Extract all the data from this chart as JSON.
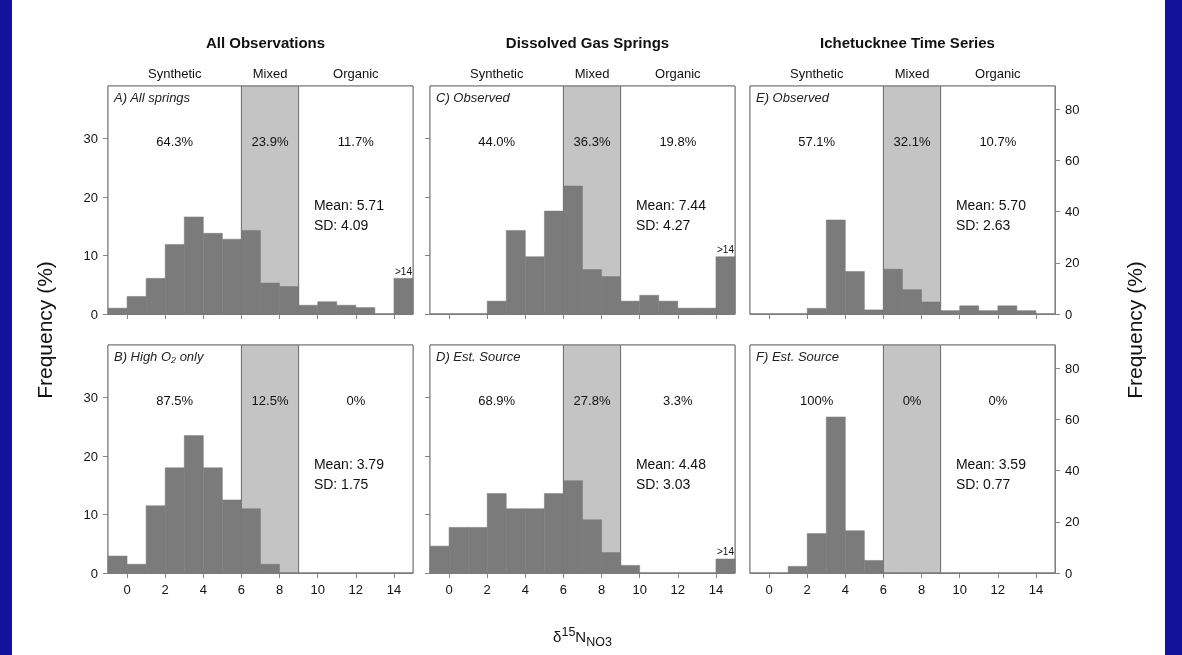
{
  "chart_data": [
    {
      "type": "histogram",
      "title": "All Observations",
      "ylabel": "Frequency (%)",
      "xlim": [
        -1,
        15
      ],
      "xticks": [
        0,
        2,
        4,
        6,
        8,
        10,
        12,
        14
      ],
      "ylim": [
        0,
        39
      ],
      "yticks": [
        0,
        10,
        20,
        30
      ],
      "tick_labels": "y",
      "bins": [
        -1,
        0,
        1,
        2,
        3,
        4,
        5,
        6,
        7,
        8,
        9,
        10,
        11,
        12,
        13,
        14,
        15
      ],
      "series": [
        {
          "color": "#7b7b7b",
          "values": [
            1.0,
            3.0,
            6.1,
            11.9,
            16.6,
            13.8,
            12.8,
            14.3,
            5.3,
            4.7,
            1.5,
            2.1,
            1.5,
            1.1,
            0,
            6.1
          ]
        }
      ],
      "bands": [
        {
          "axis": "x",
          "from": -1,
          "to": 6,
          "label": "Synthetic",
          "color": "#ffffff"
        },
        {
          "axis": "x",
          "from": 6,
          "to": 9,
          "label": "Mixed",
          "color": "#c4c4c4"
        },
        {
          "axis": "x",
          "from": 9,
          "to": 15,
          "label": "Organic",
          "color": "#ffffff"
        }
      ],
      "annotations": [
        "A) All springs",
        "64.3%",
        "23.9%",
        "11.7%",
        "Mean: 5.71",
        "SD: 4.09",
        ">14"
      ]
    },
    {
      "type": "histogram",
      "title": "Dissolved Gas Springs",
      "xlim": [
        -1,
        15
      ],
      "xticks": [
        0,
        2,
        4,
        6,
        8,
        10,
        12,
        14
      ],
      "ylim": [
        0,
        39
      ],
      "yticks": [
        0,
        10,
        20,
        30
      ],
      "tick_labels": false,
      "bins": [
        -1,
        0,
        1,
        2,
        3,
        4,
        5,
        6,
        7,
        8,
        9,
        10,
        11,
        12,
        13,
        14,
        15
      ],
      "series": [
        {
          "color": "#7b7b7b",
          "values": [
            0,
            0,
            0,
            2.2,
            14.3,
            9.8,
            17.6,
            21.9,
            7.6,
            6.4,
            2.2,
            3.2,
            2.2,
            1.0,
            1.0,
            9.8
          ]
        }
      ],
      "bands": [
        {
          "axis": "x",
          "from": -1,
          "to": 6,
          "label": "Synthetic",
          "color": "#ffffff"
        },
        {
          "axis": "x",
          "from": 6,
          "to": 9,
          "label": "Mixed",
          "color": "#c4c4c4"
        },
        {
          "axis": "x",
          "from": 9,
          "to": 15,
          "label": "Organic",
          "color": "#ffffff"
        }
      ],
      "annotations": [
        "C) Observed",
        "44.0%",
        "36.3%",
        "19.8%",
        "Mean: 7.44",
        "SD: 4.27",
        ">14"
      ]
    },
    {
      "type": "histogram",
      "title": "Ichetucknee Time Series",
      "y2label": "Frequency (%)",
      "xlim": [
        -1,
        15
      ],
      "xticks": [
        0,
        2,
        4,
        6,
        8,
        10,
        12,
        14
      ],
      "y2lim": [
        0,
        89
      ],
      "y2ticks": [
        0,
        20,
        40,
        60,
        80
      ],
      "tick_labels": "y",
      "bins": [
        -1,
        0,
        1,
        2,
        3,
        4,
        5,
        6,
        7,
        8,
        9,
        10,
        11,
        12,
        13,
        14,
        15
      ],
      "series": [
        {
          "color": "#7b7b7b",
          "axis": "y2",
          "values": [
            0,
            0,
            0,
            2.2,
            36.7,
            16.6,
            1.6,
            17.5,
            9.5,
            4.7,
            1.3,
            3.2,
            1.3,
            3.2,
            1.3,
            0
          ]
        }
      ],
      "bands": [
        {
          "axis": "x",
          "from": -1,
          "to": 6,
          "label": "Synthetic",
          "color": "#ffffff"
        },
        {
          "axis": "x",
          "from": 6,
          "to": 9,
          "label": "Mixed",
          "color": "#c4c4c4"
        },
        {
          "axis": "x",
          "from": 9,
          "to": 15,
          "label": "Organic",
          "color": "#ffffff"
        }
      ],
      "annotations": [
        "E) Observed",
        "57.1%",
        "32.1%",
        "10.7%",
        "Mean: 5.70",
        "SD: 2.63"
      ]
    },
    {
      "type": "histogram",
      "xlim": [
        -1,
        15
      ],
      "xticks": [
        0,
        2,
        4,
        6,
        8,
        10,
        12,
        14
      ],
      "ylim": [
        0,
        39
      ],
      "yticks": [
        0,
        10,
        20,
        30
      ],
      "bins": [
        -1,
        0,
        1,
        2,
        3,
        4,
        5,
        6,
        7,
        8,
        9,
        10,
        11,
        12,
        13,
        14,
        15
      ],
      "series": [
        {
          "color": "#7b7b7b",
          "values": [
            2.9,
            1.5,
            11.5,
            18.0,
            23.5,
            18.0,
            12.5,
            11.0,
            1.5,
            0,
            0,
            0,
            0,
            0,
            0,
            0
          ]
        }
      ],
      "bands": [
        {
          "axis": "x",
          "from": -1,
          "to": 6,
          "color": "#ffffff"
        },
        {
          "axis": "x",
          "from": 6,
          "to": 9,
          "color": "#c4c4c4"
        },
        {
          "axis": "x",
          "from": 9,
          "to": 15,
          "color": "#ffffff"
        }
      ],
      "annotations": [
        "B) High O₂ only",
        "87.5%",
        "12.5%",
        "0%",
        "Mean: 3.79",
        "SD: 1.75"
      ]
    },
    {
      "type": "histogram",
      "xlabel": "δ$^{15}$N$_{NO3}$",
      "xlim": [
        -1,
        15
      ],
      "xticks": [
        0,
        2,
        4,
        6,
        8,
        10,
        12,
        14
      ],
      "ylim": [
        0,
        39
      ],
      "yticks": [
        0,
        10,
        20,
        30
      ],
      "tick_labels": "x",
      "bins": [
        -1,
        0,
        1,
        2,
        3,
        4,
        5,
        6,
        7,
        8,
        9,
        10,
        11,
        12,
        13,
        14,
        15
      ],
      "series": [
        {
          "color": "#7b7b7b",
          "values": [
            4.6,
            7.8,
            7.8,
            13.6,
            11.0,
            11.0,
            13.6,
            15.8,
            9.1,
            3.5,
            1.3,
            0,
            0,
            0,
            0,
            2.4
          ]
        }
      ],
      "bands": [
        {
          "axis": "x",
          "from": -1,
          "to": 6,
          "color": "#ffffff"
        },
        {
          "axis": "x",
          "from": 6,
          "to": 9,
          "color": "#c4c4c4"
        },
        {
          "axis": "x",
          "from": 9,
          "to": 15,
          "color": "#ffffff"
        }
      ],
      "annotations": [
        "D) Est. Source",
        "68.9%",
        "27.8%",
        "3.3%",
        "Mean: 4.48",
        "SD: 3.03",
        ">14"
      ]
    },
    {
      "type": "histogram",
      "xlim": [
        -1,
        15
      ],
      "xticks": [
        0,
        2,
        4,
        6,
        8,
        10,
        12,
        14
      ],
      "y2lim": [
        0,
        89
      ],
      "y2ticks": [
        0,
        20,
        40,
        60,
        80
      ],
      "bins": [
        -1,
        0,
        1,
        2,
        3,
        4,
        5,
        6,
        7,
        8,
        9,
        10,
        11,
        12,
        13,
        14,
        15
      ],
      "series": [
        {
          "color": "#7b7b7b",
          "axis": "y2",
          "values": [
            0,
            0,
            2.6,
            15.4,
            60.9,
            16.5,
            4.9,
            0,
            0,
            0,
            0,
            0,
            0,
            0,
            0,
            0
          ]
        }
      ],
      "bands": [
        {
          "axis": "x",
          "from": -1,
          "to": 6,
          "color": "#ffffff"
        },
        {
          "axis": "x",
          "from": 6,
          "to": 9,
          "color": "#c4c4c4"
        },
        {
          "axis": "x",
          "from": 9,
          "to": 15,
          "color": "#ffffff"
        }
      ],
      "annotations": [
        "F) Est. Source",
        "100%",
        "0%",
        "0%",
        "Mean: 3.59",
        "SD: 0.77"
      ]
    }
  ]
}
